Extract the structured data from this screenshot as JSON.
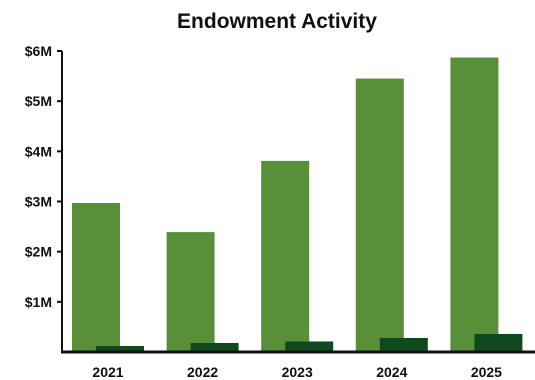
{
  "chart_data": {
    "type": "bar",
    "title": "Endowment Activity",
    "xlabel": "",
    "ylabel": "",
    "categories": [
      "2021",
      "2022",
      "2023",
      "2024",
      "2025"
    ],
    "series": [
      {
        "values": [
          2.97,
          2.39,
          3.81,
          5.45,
          5.87
        ],
        "color": "#5a8f3a"
      },
      {
        "values": [
          0.12,
          0.18,
          0.21,
          0.28,
          0.36
        ],
        "color": "#0e4a1e"
      }
    ],
    "ylim": [
      0,
      6
    ],
    "yticks": [
      1,
      2,
      3,
      4,
      5,
      6
    ],
    "ytick_labels": [
      "$1M",
      "$2M",
      "$3M",
      "$4M",
      "$5M",
      "$6M"
    ],
    "grid": false,
    "legend": "none"
  }
}
